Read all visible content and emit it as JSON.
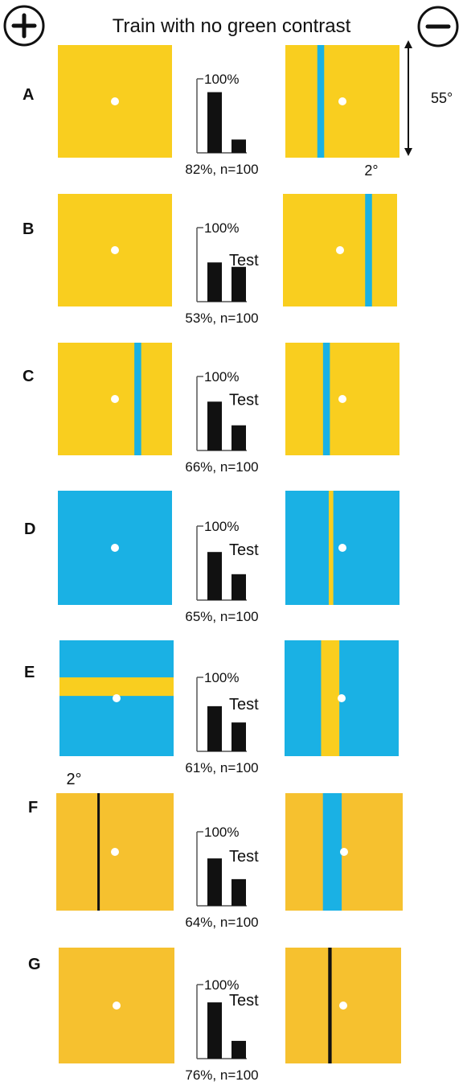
{
  "header": {
    "title": "Train with no green contrast",
    "plus_symbol": "+",
    "minus_symbol": "−"
  },
  "colors": {
    "yellow": "#f9ce1f",
    "amber": "#f6c12f",
    "blue": "#1ab1e4",
    "black": "#111111",
    "dot": "#ffffff"
  },
  "annotations": {
    "height_label": "55°",
    "width_label": "2°"
  },
  "chart_data": [
    {
      "panel": "A",
      "type": "bar",
      "values": [
        82,
        18
      ],
      "ylim": [
        0,
        100
      ],
      "ylabel": "100%",
      "test_label": "",
      "caption": "82%, n=100"
    },
    {
      "panel": "B",
      "type": "bar",
      "values": [
        53,
        47
      ],
      "ylim": [
        0,
        100
      ],
      "ylabel": "100%",
      "test_label": "Test",
      "caption": "53%, n=100"
    },
    {
      "panel": "C",
      "type": "bar",
      "values": [
        66,
        34
      ],
      "ylim": [
        0,
        100
      ],
      "ylabel": "100%",
      "test_label": "Test",
      "caption": "66%, n=100"
    },
    {
      "panel": "D",
      "type": "bar",
      "values": [
        65,
        35
      ],
      "ylim": [
        0,
        100
      ],
      "ylabel": "100%",
      "test_label": "Test",
      "caption": "65%, n=100"
    },
    {
      "panel": "E",
      "type": "bar",
      "values": [
        61,
        39
      ],
      "ylim": [
        0,
        100
      ],
      "ylabel": "100%",
      "test_label": "Test",
      "caption": "61%, n=100"
    },
    {
      "panel": "F",
      "type": "bar",
      "values": [
        64,
        36
      ],
      "ylim": [
        0,
        100
      ],
      "ylabel": "100%",
      "test_label": "Test",
      "caption": "64%, n=100"
    },
    {
      "panel": "G",
      "type": "bar",
      "values": [
        76,
        24
      ],
      "ylim": [
        0,
        100
      ],
      "ylabel": "100%",
      "test_label": "Test",
      "caption": "76%, n=100"
    }
  ],
  "panels": [
    {
      "label": "A",
      "plus": {
        "bg": "yellow",
        "bars": []
      },
      "minus": {
        "bg": "yellow",
        "bars": [
          {
            "orient": "v",
            "color": "blue",
            "pos": 0.28,
            "size": 0.06
          }
        ]
      }
    },
    {
      "label": "B",
      "plus": {
        "bg": "yellow",
        "bars": []
      },
      "minus": {
        "bg": "yellow",
        "bars": [
          {
            "orient": "v",
            "color": "blue",
            "pos": 0.72,
            "size": 0.06
          }
        ]
      }
    },
    {
      "label": "C",
      "plus": {
        "bg": "yellow",
        "bars": [
          {
            "orient": "v",
            "color": "blue",
            "pos": 0.67,
            "size": 0.06
          }
        ]
      },
      "minus": {
        "bg": "yellow",
        "bars": [
          {
            "orient": "v",
            "color": "blue",
            "pos": 0.33,
            "size": 0.06
          }
        ]
      }
    },
    {
      "label": "D",
      "plus": {
        "bg": "blue",
        "bars": []
      },
      "minus": {
        "bg": "blue",
        "bars": [
          {
            "orient": "v",
            "color": "yellow",
            "pos": 0.38,
            "size": 0.04
          }
        ]
      }
    },
    {
      "label": "E",
      "plus": {
        "bg": "blue",
        "bars": [
          {
            "orient": "h",
            "color": "yellow",
            "pos": 0.32,
            "size": 0.16
          }
        ]
      },
      "minus": {
        "bg": "blue",
        "bars": [
          {
            "orient": "v",
            "color": "yellow",
            "pos": 0.32,
            "size": 0.16
          }
        ]
      }
    },
    {
      "label": "F",
      "plus": {
        "bg": "amber",
        "bars": [
          {
            "orient": "v",
            "color": "black",
            "pos": 0.35,
            "size": 0.02
          }
        ]
      },
      "minus": {
        "bg": "amber",
        "bars": [
          {
            "orient": "v",
            "color": "blue",
            "pos": 0.32,
            "size": 0.16
          }
        ]
      }
    },
    {
      "label": "G",
      "plus": {
        "bg": "amber",
        "bars": []
      },
      "minus": {
        "bg": "amber",
        "bars": [
          {
            "orient": "v",
            "color": "black",
            "pos": 0.37,
            "size": 0.03
          }
        ]
      }
    }
  ]
}
